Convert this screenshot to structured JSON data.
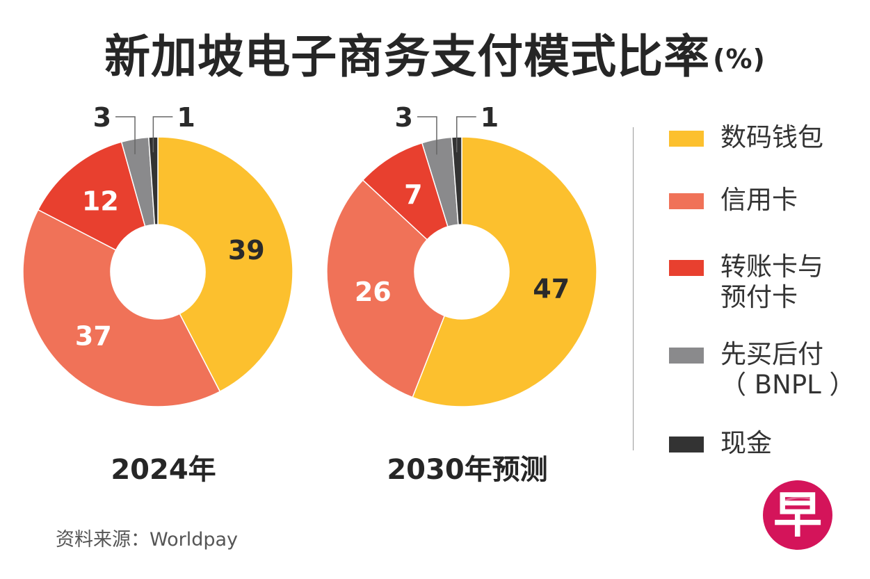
{
  "title": "新加坡电子商务支付模式比率",
  "title_unit": "(%)",
  "source": "资料来源：Worldpay",
  "logo_text": "早",
  "chart_data": {
    "type": "donut",
    "unit": "%",
    "categories": [
      "数码钱包",
      "信用卡",
      "转账卡与预付卡",
      "先买后付（BNPL）",
      "现金"
    ],
    "colors": [
      "#fcc02e",
      "#f07258",
      "#e8402f",
      "#8a8a8c",
      "#333333"
    ],
    "series": [
      {
        "name": "2024年",
        "values": [
          39,
          37,
          12,
          3,
          1
        ]
      },
      {
        "name": "2030年预测",
        "values": [
          47,
          26,
          7,
          3,
          1
        ]
      }
    ]
  },
  "legend": [
    {
      "label": "数码钱包",
      "color": "#fcc02e"
    },
    {
      "label": "信用卡",
      "color": "#f07258"
    },
    {
      "label": "转账卡与\n预付卡",
      "color": "#e8402f"
    },
    {
      "label": "先买后付\n（ BNPL ）",
      "color": "#8a8a8c"
    },
    {
      "label": "现金",
      "color": "#333333"
    }
  ],
  "brand_color": "#d4145a"
}
